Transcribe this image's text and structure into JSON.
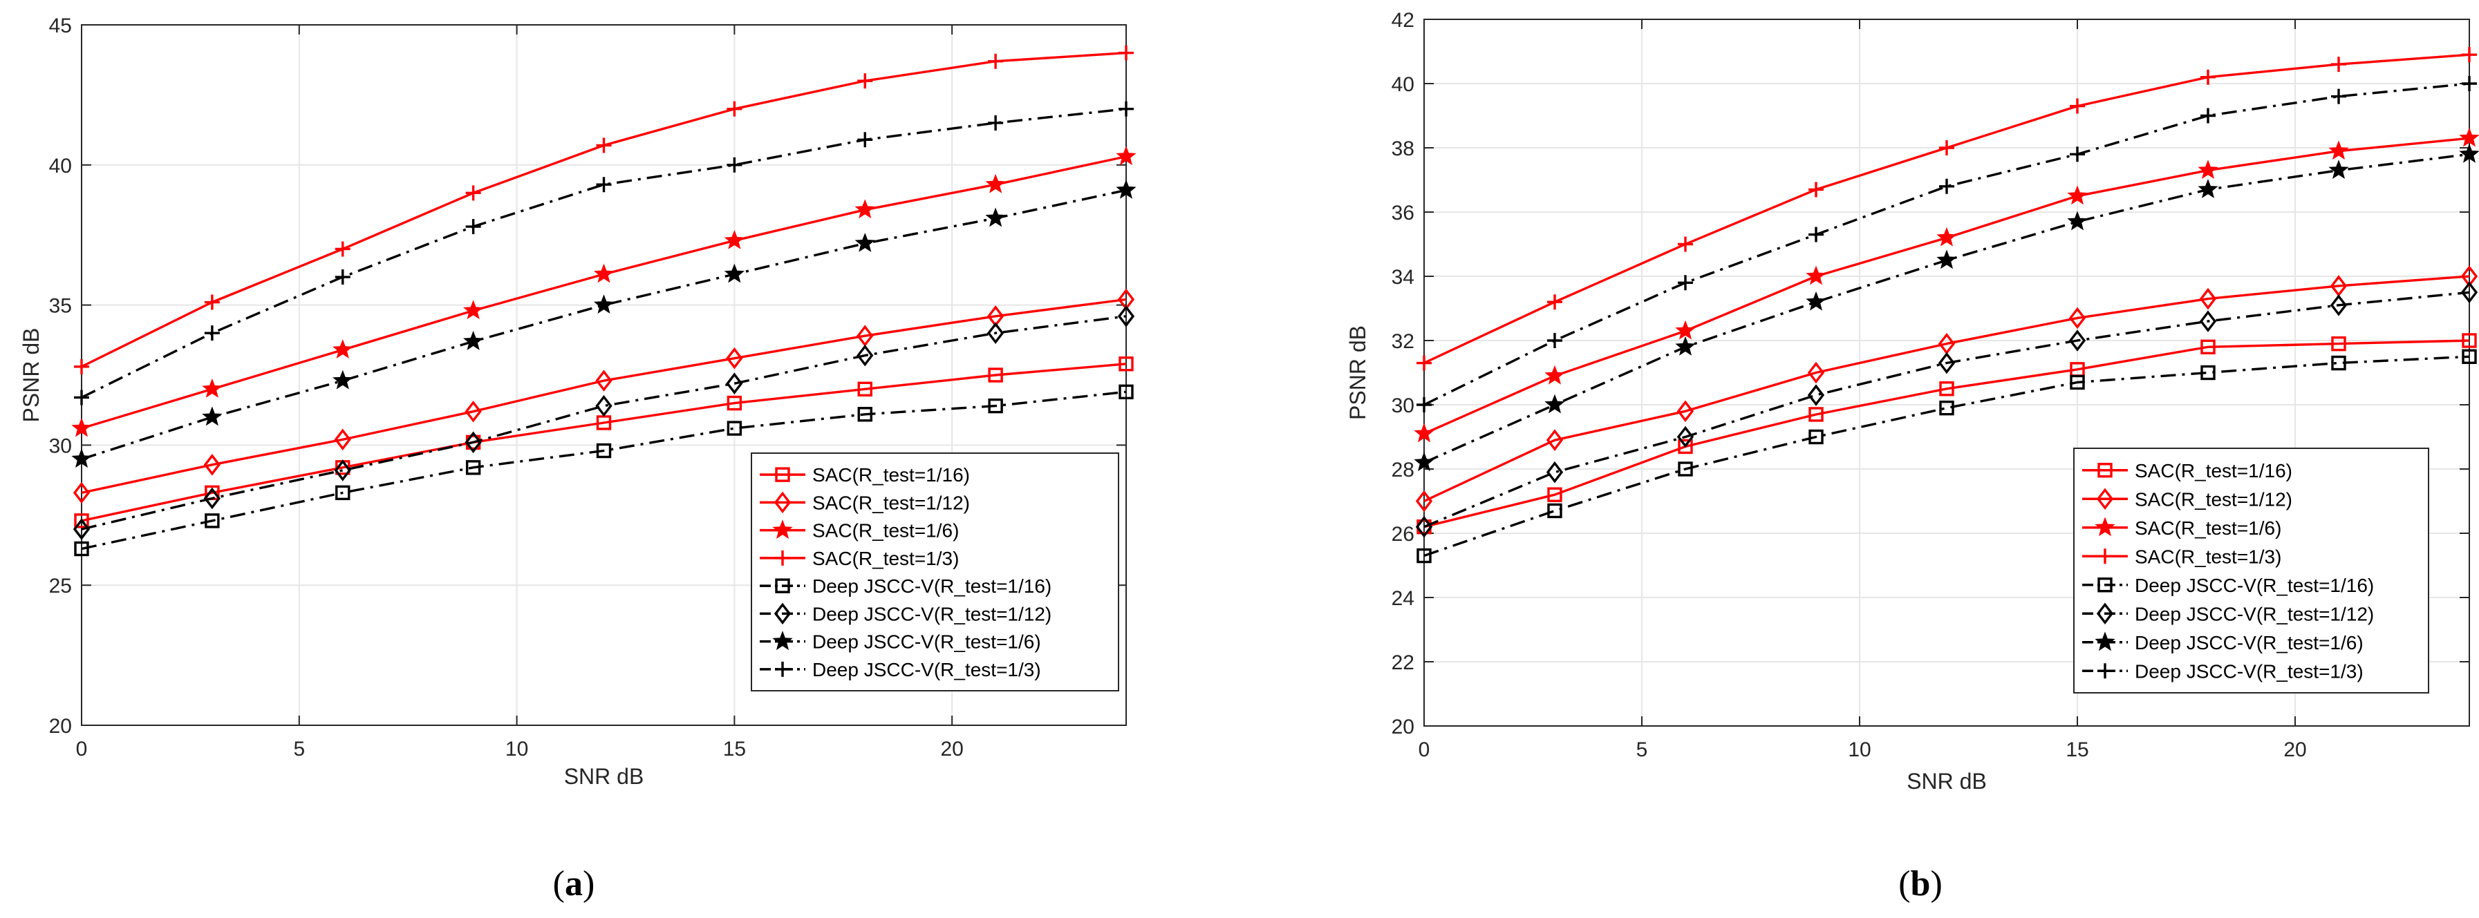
{
  "colors": {
    "sac": "#ff0000",
    "jscc": "#000000",
    "grid": "#e6e6e6",
    "axis": "#262626"
  },
  "chart_data": [
    {
      "type": "line",
      "caption_letter": "a",
      "xlabel": "SNR dB",
      "ylabel": "PSNR dB",
      "xlim": [
        0,
        24
      ],
      "ylim": [
        20,
        45
      ],
      "xticks": [
        0,
        5,
        10,
        15,
        20
      ],
      "yticks": [
        20,
        25,
        30,
        35,
        40,
        45
      ],
      "grid": true,
      "legend_position": "center-right",
      "x": [
        0,
        3,
        6,
        9,
        12,
        15,
        18,
        21,
        24
      ],
      "series": [
        {
          "name": "SAC(R_test=1/16)",
          "style": "solid",
          "marker": "square",
          "color": "#ff0000",
          "values": [
            27.3,
            28.3,
            29.2,
            30.1,
            30.8,
            31.5,
            32.0,
            32.5,
            32.9
          ]
        },
        {
          "name": "SAC(R_test=1/12)",
          "style": "solid",
          "marker": "diamond",
          "color": "#ff0000",
          "values": [
            28.3,
            29.3,
            30.2,
            31.2,
            32.3,
            33.1,
            33.9,
            34.6,
            35.2
          ]
        },
        {
          "name": "SAC(R_test=1/6)",
          "style": "solid",
          "marker": "star",
          "color": "#ff0000",
          "values": [
            30.6,
            32.0,
            33.4,
            34.8,
            36.1,
            37.3,
            38.4,
            39.3,
            40.3
          ]
        },
        {
          "name": "SAC(R_test=1/3)",
          "style": "solid",
          "marker": "plus",
          "color": "#ff0000",
          "values": [
            32.8,
            35.1,
            37.0,
            39.0,
            40.7,
            42.0,
            43.0,
            43.7,
            44.0
          ]
        },
        {
          "name": "Deep JSCC-V(R_test=1/16)",
          "style": "dashdot",
          "marker": "square",
          "color": "#000000",
          "values": [
            26.3,
            27.3,
            28.3,
            29.2,
            29.8,
            30.6,
            31.1,
            31.4,
            31.9
          ]
        },
        {
          "name": "Deep JSCC-V(R_test=1/12)",
          "style": "dashdot",
          "marker": "diamond",
          "color": "#000000",
          "values": [
            27.0,
            28.1,
            29.1,
            30.1,
            31.4,
            32.2,
            33.2,
            34.0,
            34.6
          ]
        },
        {
          "name": "Deep JSCC-V(R_test=1/6)",
          "style": "dashdot",
          "marker": "star",
          "color": "#000000",
          "values": [
            29.5,
            31.0,
            32.3,
            33.7,
            35.0,
            36.1,
            37.2,
            38.1,
            39.1
          ]
        },
        {
          "name": "Deep JSCC-V(R_test=1/3)",
          "style": "dashdot",
          "marker": "plus",
          "color": "#000000",
          "values": [
            31.7,
            34.0,
            36.0,
            37.8,
            39.3,
            40.0,
            40.9,
            41.5,
            42.0
          ]
        }
      ]
    },
    {
      "type": "line",
      "caption_letter": "b",
      "xlabel": "SNR dB",
      "ylabel": "PSNR dB",
      "xlim": [
        0,
        24
      ],
      "ylim": [
        20,
        42
      ],
      "xticks": [
        0,
        5,
        10,
        15,
        20
      ],
      "yticks": [
        20,
        22,
        24,
        26,
        28,
        30,
        32,
        34,
        36,
        38,
        40,
        42
      ],
      "grid": true,
      "legend_position": "bottom-right",
      "x": [
        0,
        3,
        6,
        9,
        12,
        15,
        18,
        21,
        24
      ],
      "series": [
        {
          "name": "SAC(R_test=1/16)",
          "style": "solid",
          "marker": "square",
          "color": "#ff0000",
          "values": [
            26.2,
            27.2,
            28.7,
            29.7,
            30.5,
            31.1,
            31.8,
            31.9,
            32.0
          ]
        },
        {
          "name": "SAC(R_test=1/12)",
          "style": "solid",
          "marker": "diamond",
          "color": "#ff0000",
          "values": [
            27.0,
            28.9,
            29.8,
            31.0,
            31.9,
            32.7,
            33.3,
            33.7,
            34.0
          ]
        },
        {
          "name": "SAC(R_test=1/6)",
          "style": "solid",
          "marker": "star",
          "color": "#ff0000",
          "values": [
            29.1,
            30.9,
            32.3,
            34.0,
            35.2,
            36.5,
            37.3,
            37.9,
            38.3
          ]
        },
        {
          "name": "SAC(R_test=1/3)",
          "style": "solid",
          "marker": "plus",
          "color": "#ff0000",
          "values": [
            31.3,
            33.2,
            35.0,
            36.7,
            38.0,
            39.3,
            40.2,
            40.6,
            40.9
          ]
        },
        {
          "name": "Deep JSCC-V(R_test=1/16)",
          "style": "dashdot",
          "marker": "square",
          "color": "#000000",
          "values": [
            25.3,
            26.7,
            28.0,
            29.0,
            29.9,
            30.7,
            31.0,
            31.3,
            31.5
          ]
        },
        {
          "name": "Deep JSCC-V(R_test=1/12)",
          "style": "dashdot",
          "marker": "diamond",
          "color": "#000000",
          "values": [
            26.2,
            27.9,
            29.0,
            30.3,
            31.3,
            32.0,
            32.6,
            33.1,
            33.5
          ]
        },
        {
          "name": "Deep JSCC-V(R_test=1/6)",
          "style": "dashdot",
          "marker": "star",
          "color": "#000000",
          "values": [
            28.2,
            30.0,
            31.8,
            33.2,
            34.5,
            35.7,
            36.7,
            37.3,
            37.8
          ]
        },
        {
          "name": "Deep JSCC-V(R_test=1/3)",
          "style": "dashdot",
          "marker": "plus",
          "color": "#000000",
          "values": [
            30.0,
            32.0,
            33.8,
            35.3,
            36.8,
            37.8,
            39.0,
            39.6,
            40.0
          ]
        }
      ]
    }
  ]
}
